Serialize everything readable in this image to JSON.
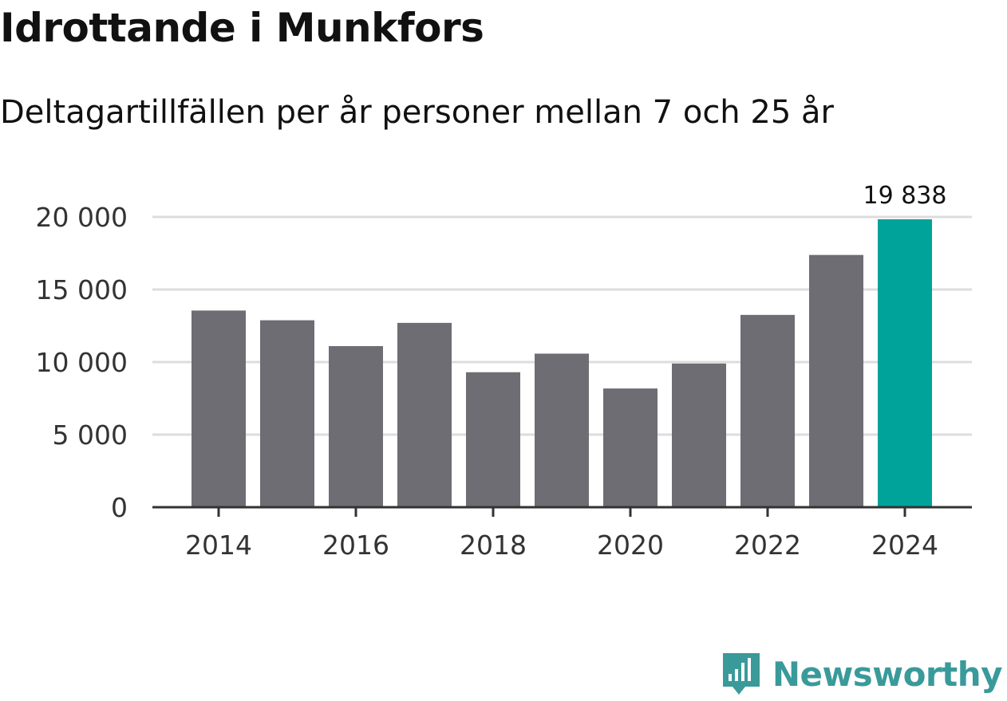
{
  "title": "Idrottande i Munkfors",
  "subtitle": "Deltagartillfällen per år personer mellan 7 och 25 år",
  "brand": {
    "name": "Newsworthy",
    "icon": "newsworthy-logo-icon",
    "color": "#3a9a9a"
  },
  "colors": {
    "bar": "#6e6d73",
    "highlight": "#00a39a",
    "grid": "#dddddd",
    "axis": "#333333"
  },
  "chart_data": {
    "type": "bar",
    "title": "Idrottande i Munkfors",
    "subtitle": "Deltagartillfällen per år personer mellan 7 och 25 år",
    "categories": [
      "2014",
      "2015",
      "2016",
      "2017",
      "2018",
      "2019",
      "2020",
      "2021",
      "2022",
      "2023",
      "2024"
    ],
    "values": [
      13550,
      12880,
      11100,
      12700,
      9300,
      10580,
      8180,
      9900,
      13250,
      17380,
      19838
    ],
    "highlight_index": 10,
    "highlight_label": "19 838",
    "xlabel": "",
    "ylabel": "",
    "ylim": [
      0,
      20000
    ],
    "yticks": [
      0,
      5000,
      10000,
      15000,
      20000
    ],
    "ytick_labels": [
      "0",
      "5 000",
      "10 000",
      "15 000",
      "20 000"
    ],
    "xtick_labels": [
      "2014",
      "2016",
      "2018",
      "2020",
      "2022",
      "2024"
    ],
    "grid": true,
    "legend": "none"
  }
}
